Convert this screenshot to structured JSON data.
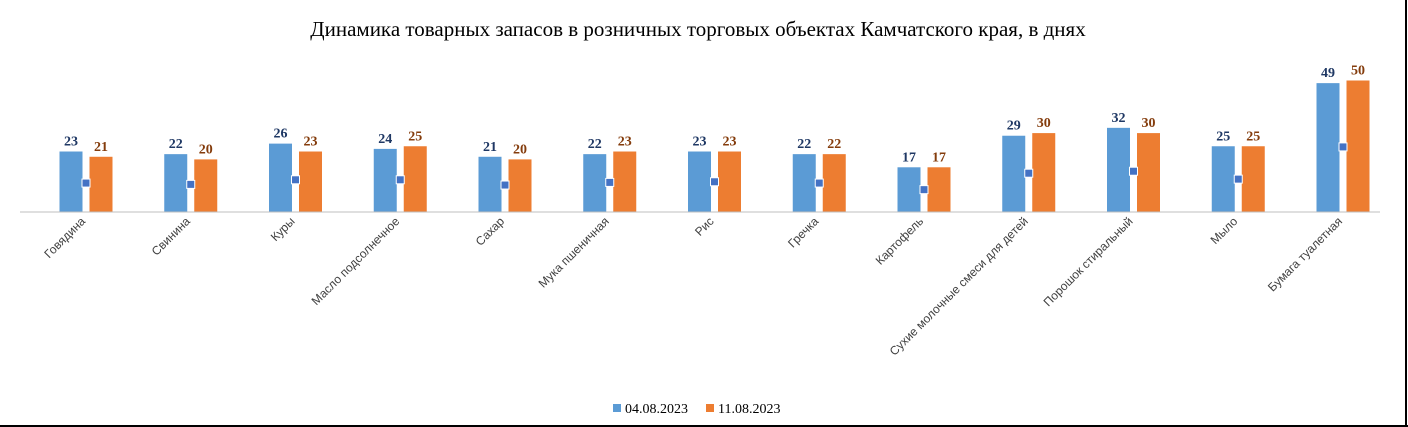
{
  "chart_data": {
    "type": "bar",
    "title": "Динамика товарных запасов в розничных торговых объектах Камчатского края, в днях",
    "xlabel": "",
    "ylabel": "",
    "ylim": [
      0,
      55
    ],
    "grid": false,
    "legend_position": "bottom",
    "categories": [
      "Говядина",
      "Свинина",
      "Куры",
      "Масло подсолнечное",
      "Сахар",
      "Мука пшеничная",
      "Рис",
      "Гречка",
      "Картофель",
      "Сухие молочные смеси для детей",
      "Порошок стиральный",
      "Мыло",
      "Бумага туалетная"
    ],
    "series": [
      {
        "name": "04.08.2023",
        "color": "#5B9BD5",
        "label_color": "#1F3864",
        "values": [
          23,
          22,
          26,
          24,
          21,
          22,
          23,
          22,
          17,
          29,
          32,
          25,
          49
        ]
      },
      {
        "name": "11.08.2023",
        "color": "#ED7D31",
        "label_color": "#843C0C",
        "values": [
          21,
          20,
          23,
          25,
          20,
          23,
          23,
          22,
          17,
          30,
          30,
          25,
          50
        ]
      }
    ],
    "marker_color": "#4472C4"
  }
}
